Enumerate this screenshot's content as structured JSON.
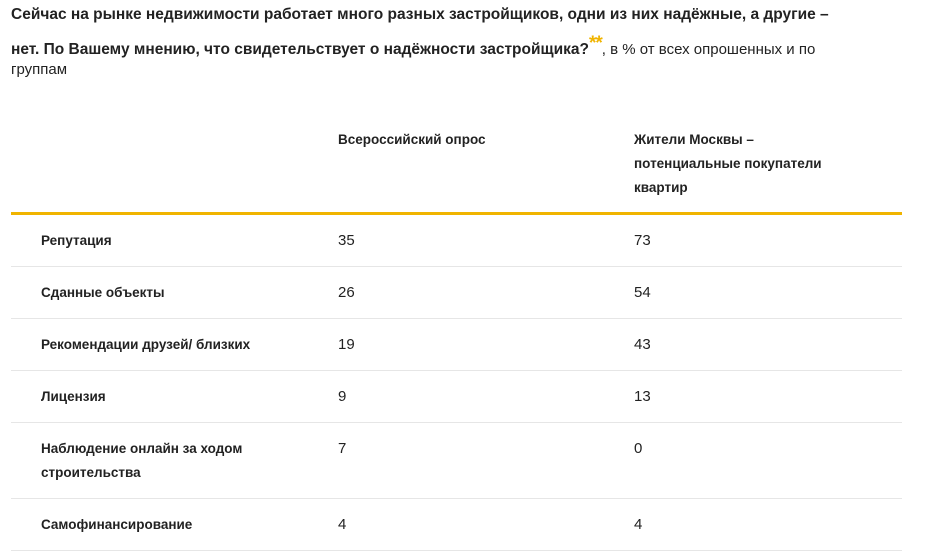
{
  "heading": {
    "question_line1": "Сейчас на рынке недвижимости работает много разных застройщиков, одни из них надёжные, а другие –",
    "question_line2": "нет. По Вашему мнению, что свидетельствует о надёжности застройщика?",
    "stars": "**",
    "suffix": ", в % от всех опрошенных и по",
    "suffix_line2": "группам"
  },
  "table": {
    "col_all_russia": "Всероссийский опрос",
    "col_moscow_line1": "Жители Москвы –",
    "col_moscow_line2": "потенциальные покупатели",
    "col_moscow_line3": "квартир",
    "rows": [
      {
        "label": "Репутация",
        "all_russia": "35",
        "moscow": "73"
      },
      {
        "label": "Сданные объекты",
        "all_russia": "26",
        "moscow": "54"
      },
      {
        "label": "Рекомендации друзей/ близких",
        "all_russia": "19",
        "moscow": "43"
      },
      {
        "label": "Лицензия",
        "all_russia": "9",
        "moscow": "13"
      },
      {
        "label_line1": "Наблюдение онлайн за ходом",
        "label_line2": "строительства",
        "all_russia": "7",
        "moscow": "0"
      },
      {
        "label": "Самофинансирование",
        "all_russia": "4",
        "moscow": "4"
      }
    ]
  },
  "colors": {
    "accent": "#f0b400",
    "divider": "#e6e6e6",
    "text": "#222222"
  }
}
